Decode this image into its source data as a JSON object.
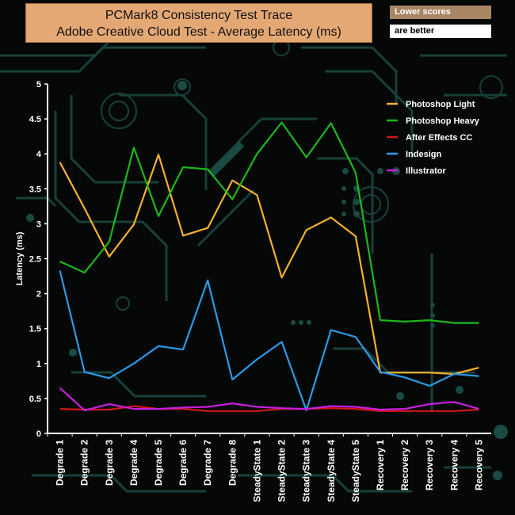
{
  "header": {
    "title_line1": "PCMark8 Consistency Test Trace",
    "title_line2": "Adobe Creative Cloud Test -  Average Latency (ms)"
  },
  "notes": {
    "line1": "Lower scores",
    "line2": "are better"
  },
  "colors": {
    "background": "#050807",
    "circuit": "#17403a",
    "title_bg": "#e4a874",
    "axis": "#ffffff"
  },
  "chart_data": {
    "type": "line",
    "title": "PCMark8 Consistency Test Trace Adobe Creative Cloud Test -  Average Latency (ms)",
    "xlabel": "",
    "ylabel": "Latency (ms)",
    "ylim": [
      0,
      5
    ],
    "yticks": [
      "0",
      "0.5",
      "1",
      "1.5",
      "2",
      "2.5",
      "3",
      "3.5",
      "4",
      "4.5",
      "5"
    ],
    "grid": false,
    "legend_position": "top-right",
    "categories": [
      "Degrade 1",
      "Degrade 2",
      "Degrade 3",
      "Degrade 4",
      "Degrade 5",
      "Degrade 6",
      "Degrade 7",
      "Degrade 8",
      "SteadyState 1",
      "SteadyState 2",
      "SteadyState 3",
      "SteadyState 4",
      "SteadyState 5",
      "Recovery 1",
      "Recovery 2",
      "Recovery 3",
      "Recovery 4",
      "Recovery 5"
    ],
    "series": [
      {
        "name": "Photoshop Light",
        "color": "#f5b02e",
        "values": [
          3.88,
          3.22,
          2.53,
          2.99,
          3.99,
          2.83,
          2.94,
          3.62,
          3.41,
          2.23,
          2.91,
          3.09,
          2.82,
          0.87,
          0.87,
          0.87,
          0.85,
          0.94
        ]
      },
      {
        "name": " Photoshop Heavy",
        "color": "#1cb81c",
        "values": [
          2.46,
          2.3,
          2.74,
          4.09,
          3.11,
          3.81,
          3.78,
          3.35,
          4.0,
          4.45,
          3.95,
          4.44,
          3.73,
          1.62,
          1.6,
          1.62,
          1.58,
          1.58
        ]
      },
      {
        "name": "After Effects CC",
        "color": "#d01818",
        "values": [
          0.35,
          0.34,
          0.34,
          0.39,
          0.35,
          0.35,
          0.32,
          0.32,
          0.32,
          0.35,
          0.35,
          0.36,
          0.35,
          0.32,
          0.32,
          0.32,
          0.32,
          0.34
        ]
      },
      {
        "name": "Indesign",
        "color": "#2c9ae8",
        "values": [
          2.33,
          0.88,
          0.79,
          1.0,
          1.25,
          1.2,
          2.19,
          0.77,
          1.06,
          1.31,
          0.33,
          1.48,
          1.38,
          0.88,
          0.8,
          0.68,
          0.85,
          0.82
        ]
      },
      {
        "name": "Illustrator",
        "color": "#c81ee0",
        "values": [
          0.65,
          0.33,
          0.42,
          0.35,
          0.35,
          0.37,
          0.38,
          0.43,
          0.38,
          0.36,
          0.35,
          0.39,
          0.38,
          0.34,
          0.35,
          0.42,
          0.45,
          0.35
        ]
      }
    ]
  }
}
